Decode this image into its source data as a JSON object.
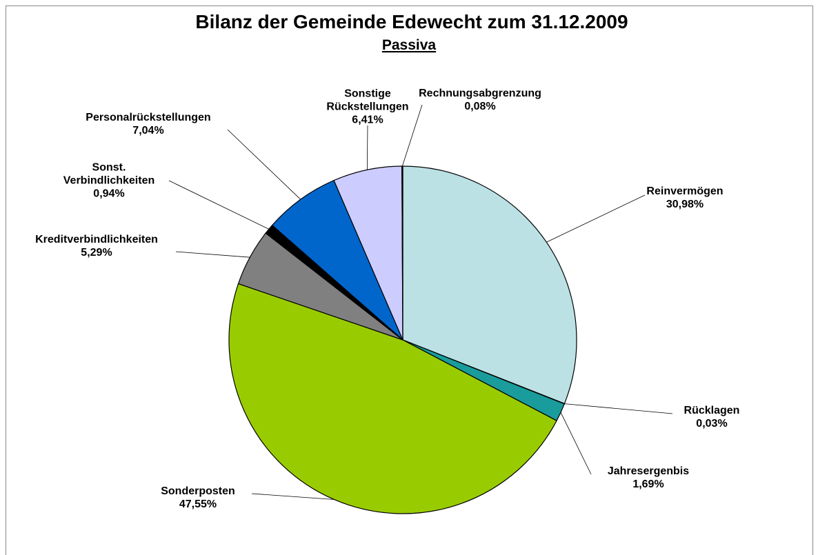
{
  "chart_data": {
    "type": "pie",
    "title": "Bilanz der Gemeinde Edewecht zum 31.12.2009",
    "subtitle": "Passiva",
    "categories": [
      "Reinvermögen",
      "Rücklagen",
      "Jahresergenbis",
      "Sonderposten",
      "Kreditverbindlichkeiten",
      "Sonst.\nVerbindlichkeiten",
      "Personalrückstellungen",
      "Sonstige\nRückstellungen",
      "Rechnungsabgrenzung"
    ],
    "values": [
      30.98,
      0.03,
      1.69,
      47.55,
      5.29,
      0.94,
      7.04,
      6.41,
      0.08
    ],
    "value_labels": [
      "30,98%",
      "0,03%",
      "1,69%",
      "47,55%",
      "5,29%",
      "0,94%",
      "7,04%",
      "6,41%",
      "0,08%"
    ],
    "colors": [
      "#bbe1e5",
      "#4d8fb0",
      "#1a9c9c",
      "#99cc00",
      "#808080",
      "#000000",
      "#0066cc",
      "#ccccff",
      "#000000"
    ]
  }
}
